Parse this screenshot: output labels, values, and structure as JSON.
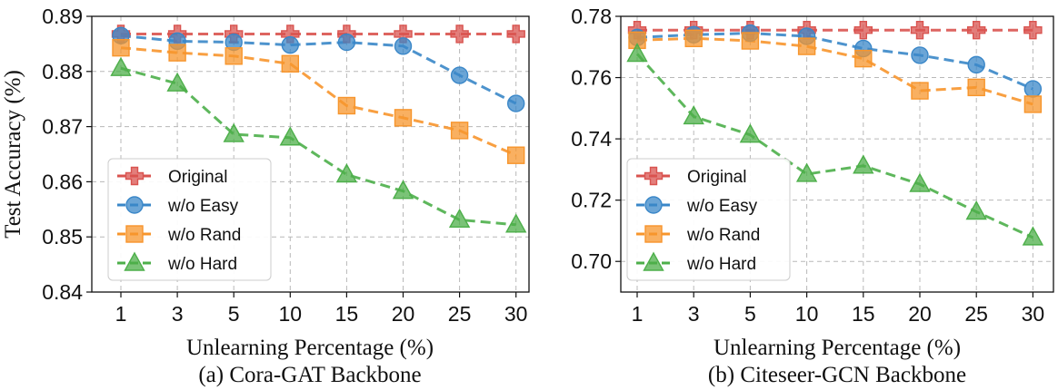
{
  "chart_data": [
    {
      "type": "line",
      "categories": [
        "1",
        "3",
        "5",
        "10",
        "15",
        "20",
        "25",
        "30"
      ],
      "xlabel": "Unlearning Percentage (%)",
      "ylabel": "Test Accuracy (%)",
      "caption": "(a) Cora-GAT Backbone",
      "ylim": [
        0.84,
        0.89
      ],
      "yticks": [
        "0.84",
        "0.85",
        "0.86",
        "0.87",
        "0.88",
        "0.89"
      ],
      "grid": true,
      "legend": "lower-left",
      "series": [
        {
          "name": "Original",
          "marker": "plus",
          "color": "#d9534f",
          "values": [
            0.8868,
            0.8868,
            0.8868,
            0.8868,
            0.8868,
            0.8868,
            0.8868,
            0.8868
          ]
        },
        {
          "name": "w/o Easy",
          "marker": "circle",
          "color": "#3a87c8",
          "values": [
            0.8865,
            0.8855,
            0.8853,
            0.8848,
            0.8853,
            0.8846,
            0.8793,
            0.8742
          ]
        },
        {
          "name": "w/o Rand",
          "marker": "square",
          "color": "#f7952c",
          "values": [
            0.8843,
            0.8834,
            0.8828,
            0.8814,
            0.8738,
            0.8716,
            0.8693,
            0.8648
          ]
        },
        {
          "name": "w/o Hard",
          "marker": "triangle",
          "color": "#4daf4a",
          "values": [
            0.8806,
            0.8778,
            0.8686,
            0.868,
            0.8613,
            0.8583,
            0.8531,
            0.8522
          ]
        }
      ]
    },
    {
      "type": "line",
      "categories": [
        "1",
        "3",
        "5",
        "10",
        "15",
        "20",
        "25",
        "30"
      ],
      "xlabel": "Unlearning Percentage (%)",
      "ylabel": "",
      "caption": "(b) Citeseer-GCN Backbone",
      "ylim": [
        0.69,
        0.78
      ],
      "yticks": [
        "0.70",
        "0.72",
        "0.74",
        "0.76",
        "0.78"
      ],
      "grid": true,
      "legend": "lower-left",
      "series": [
        {
          "name": "Original",
          "marker": "plus",
          "color": "#d9534f",
          "values": [
            0.7755,
            0.7755,
            0.7755,
            0.7755,
            0.7755,
            0.7755,
            0.7755,
            0.7755
          ]
        },
        {
          "name": "w/o Easy",
          "marker": "circle",
          "color": "#3a87c8",
          "values": [
            0.7731,
            0.774,
            0.7745,
            0.7735,
            0.7695,
            0.7673,
            0.7642,
            0.7563
          ]
        },
        {
          "name": "w/o Rand",
          "marker": "square",
          "color": "#f7952c",
          "values": [
            0.7722,
            0.7728,
            0.772,
            0.7702,
            0.7662,
            0.7557,
            0.7568,
            0.7513
          ]
        },
        {
          "name": "w/o Hard",
          "marker": "triangle",
          "color": "#4daf4a",
          "values": [
            0.7677,
            0.7473,
            0.7413,
            0.7285,
            0.7312,
            0.7252,
            0.7162,
            0.7078
          ]
        }
      ]
    }
  ]
}
